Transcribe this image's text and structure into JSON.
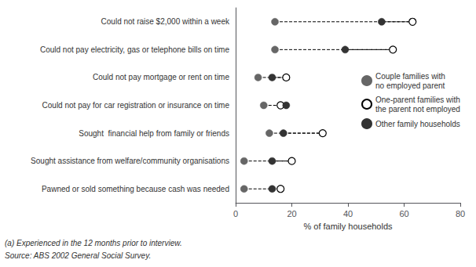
{
  "chart_data": {
    "type": "dot",
    "categories": [
      "Could not raise $2,000 within a week",
      "Could not pay electricity, gas or telephone bills on time",
      "Could not pay mortgage or rent on time",
      "Could not pay for car registration or insurance on time",
      "Sought  financial help from family or friends",
      "Sought assistance from welfare/community organisations",
      "Pawned or sold something because cash was needed"
    ],
    "series": [
      {
        "name": "Couple families with\nno employed parent",
        "color": "#666666",
        "marker": "filled",
        "values": [
          14,
          14,
          8,
          10,
          12,
          3,
          3
        ]
      },
      {
        "name": "One-parent families with\nthe parent not employed",
        "color": "#000000",
        "marker": "open",
        "values": [
          63,
          56,
          18,
          16,
          31,
          20,
          16
        ]
      },
      {
        "name": "Other family households",
        "color": "#333333",
        "marker": "filled",
        "values": [
          52,
          39,
          13,
          18,
          17,
          13,
          13
        ]
      }
    ],
    "xlabel": "% of family households",
    "xlim": [
      0,
      80
    ],
    "xticks": [
      0,
      20,
      40,
      60,
      80
    ],
    "line_style": "dashed",
    "legend": "right",
    "grid": false,
    "annotations": [
      "(a) Experienced in the 12 months prior to interview.",
      "Source: ABS 2002 General Social Survey."
    ]
  }
}
